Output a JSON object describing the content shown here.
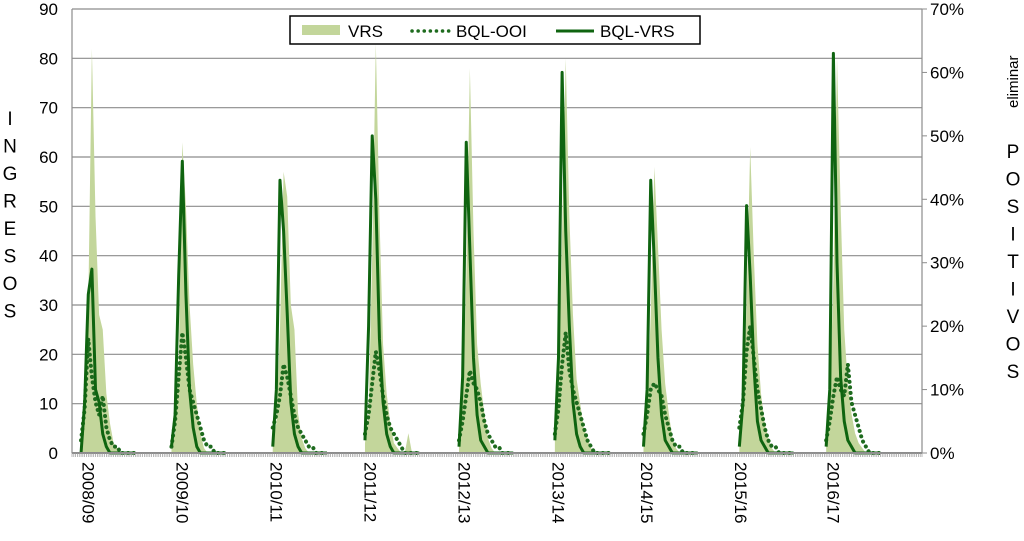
{
  "chart_data": {
    "type": "area+line",
    "title": "",
    "ylabel_left": "INGRESOS",
    "ylabel_right": "POSITIVOS",
    "ylabel_right_note": "eliminar",
    "left_ylim": [
      0,
      90
    ],
    "left_ticks": [
      "0",
      "10",
      "20",
      "30",
      "40",
      "50",
      "60",
      "70",
      "80",
      "90"
    ],
    "right_ylim": [
      0,
      70
    ],
    "right_ticks": [
      "0%",
      "10%",
      "20%",
      "30%",
      "40%",
      "50%",
      "60%",
      "70%"
    ],
    "x_unit": "week",
    "xlim": [
      0,
      470
    ],
    "x_tick_weeks": [
      9,
      61,
      113,
      165,
      217,
      269,
      318,
      370,
      421
    ],
    "x_tick_labels": [
      "2008/09",
      "2009/10",
      "2010/11",
      "2011/12",
      "2012/13",
      "2013/14",
      "2014/15",
      "2015/16",
      "2016/17"
    ],
    "grid": true,
    "legend": {
      "position": "top-center",
      "items": [
        "VRS",
        "BQL-OOI",
        "BQL-VRS"
      ]
    },
    "colors": {
      "VRS": "#c3d69b",
      "BQL-OOI": "#1e6b1e",
      "BQL-VRS": "#0f6410"
    },
    "step_weeks": 2,
    "seasons": [
      {
        "start": 5,
        "VRS": [
          3,
          8,
          30,
          82,
          48,
          28,
          25,
          12,
          6,
          2,
          1,
          0,
          0,
          0,
          0,
          0
        ],
        "BQL-VRS": [
          0,
          8,
          25,
          29,
          10,
          8,
          3,
          1,
          0,
          0,
          0,
          0,
          0,
          0,
          0,
          0
        ],
        "BQL-OOI": [
          2,
          7,
          18,
          12,
          8,
          6,
          9,
          4,
          2,
          1,
          1,
          0,
          0,
          0,
          0,
          0
        ]
      },
      {
        "start": 55,
        "VRS": [
          1,
          4,
          18,
          63,
          50,
          30,
          18,
          10,
          4,
          1,
          0,
          0,
          0,
          0,
          0,
          0
        ],
        "BQL-VRS": [
          1,
          6,
          28,
          46,
          25,
          10,
          4,
          1,
          0,
          0,
          0,
          0,
          0,
          0,
          0,
          0
        ],
        "BQL-OOI": [
          1,
          5,
          12,
          19,
          15,
          10,
          8,
          6,
          4,
          2,
          1,
          1,
          0,
          0,
          0,
          0
        ]
      },
      {
        "start": 111,
        "VRS": [
          2,
          6,
          25,
          57,
          52,
          30,
          25,
          8,
          3,
          1,
          0,
          0,
          0,
          0,
          0,
          0
        ],
        "BQL-VRS": [
          1,
          10,
          43,
          35,
          22,
          8,
          3,
          1,
          0,
          0,
          0,
          0,
          0,
          0,
          0,
          0
        ],
        "BQL-OOI": [
          4,
          6,
          9,
          14,
          12,
          9,
          6,
          4,
          3,
          2,
          1,
          1,
          0,
          0,
          0,
          0
        ]
      },
      {
        "start": 162,
        "VRS": [
          2,
          8,
          40,
          83,
          48,
          22,
          12,
          6,
          2,
          1,
          0,
          0,
          4,
          0,
          0,
          0
        ],
        "BQL-VRS": [
          2,
          20,
          50,
          40,
          18,
          8,
          3,
          1,
          0,
          0,
          0,
          0,
          0,
          0,
          0,
          0
        ],
        "BQL-OOI": [
          3,
          6,
          11,
          16,
          13,
          9,
          6,
          4,
          3,
          2,
          1,
          0,
          0,
          0,
          0,
          0
        ]
      },
      {
        "start": 214,
        "VRS": [
          3,
          10,
          35,
          78,
          45,
          22,
          14,
          8,
          3,
          1,
          0,
          0,
          0,
          0,
          0,
          0
        ],
        "BQL-VRS": [
          1,
          12,
          49,
          32,
          15,
          6,
          2,
          1,
          0,
          0,
          0,
          0,
          0,
          0,
          0,
          0
        ],
        "BQL-OOI": [
          2,
          5,
          9,
          13,
          11,
          10,
          8,
          5,
          3,
          2,
          1,
          1,
          0,
          0,
          0,
          0
        ]
      },
      {
        "start": 267,
        "VRS": [
          4,
          12,
          45,
          80,
          48,
          28,
          15,
          10,
          5,
          3,
          1,
          0,
          0,
          0,
          0,
          0
        ],
        "BQL-VRS": [
          2,
          15,
          60,
          35,
          20,
          8,
          3,
          1,
          0,
          0,
          0,
          0,
          0,
          0,
          0,
          0
        ],
        "BQL-OOI": [
          3,
          7,
          14,
          19,
          13,
          10,
          8,
          6,
          4,
          2,
          1,
          0,
          0,
          0,
          0,
          0
        ]
      },
      {
        "start": 316,
        "VRS": [
          3,
          8,
          28,
          58,
          42,
          25,
          14,
          8,
          3,
          1,
          0,
          0,
          0,
          0,
          0,
          0
        ],
        "BQL-VRS": [
          1,
          10,
          43,
          30,
          15,
          6,
          2,
          1,
          0,
          0,
          0,
          0,
          0,
          0,
          0,
          0
        ],
        "BQL-OOI": [
          3,
          6,
          10,
          11,
          10,
          9,
          6,
          4,
          2,
          1,
          1,
          0,
          0,
          0,
          0,
          0
        ]
      },
      {
        "start": 369,
        "VRS": [
          2,
          8,
          30,
          62,
          40,
          22,
          12,
          6,
          3,
          1,
          0,
          0,
          0,
          0,
          0,
          0
        ],
        "BQL-VRS": [
          1,
          8,
          39,
          28,
          14,
          5,
          2,
          1,
          0,
          0,
          0,
          0,
          0,
          0,
          0,
          0
        ],
        "BQL-OOI": [
          4,
          8,
          16,
          20,
          15,
          10,
          7,
          4,
          2,
          1,
          1,
          0,
          0,
          0,
          0,
          0
        ]
      },
      {
        "start": 417,
        "VRS": [
          3,
          10,
          35,
          80,
          50,
          25,
          14,
          8,
          4,
          2,
          1,
          0,
          0,
          0,
          0,
          0
        ],
        "BQL-VRS": [
          1,
          10,
          63,
          30,
          12,
          5,
          2,
          1,
          0,
          0,
          0,
          0,
          0,
          0,
          0,
          0
        ],
        "BQL-OOI": [
          2,
          5,
          9,
          12,
          10,
          9,
          14,
          8,
          6,
          4,
          2,
          1,
          0,
          0,
          0,
          0
        ]
      }
    ]
  }
}
